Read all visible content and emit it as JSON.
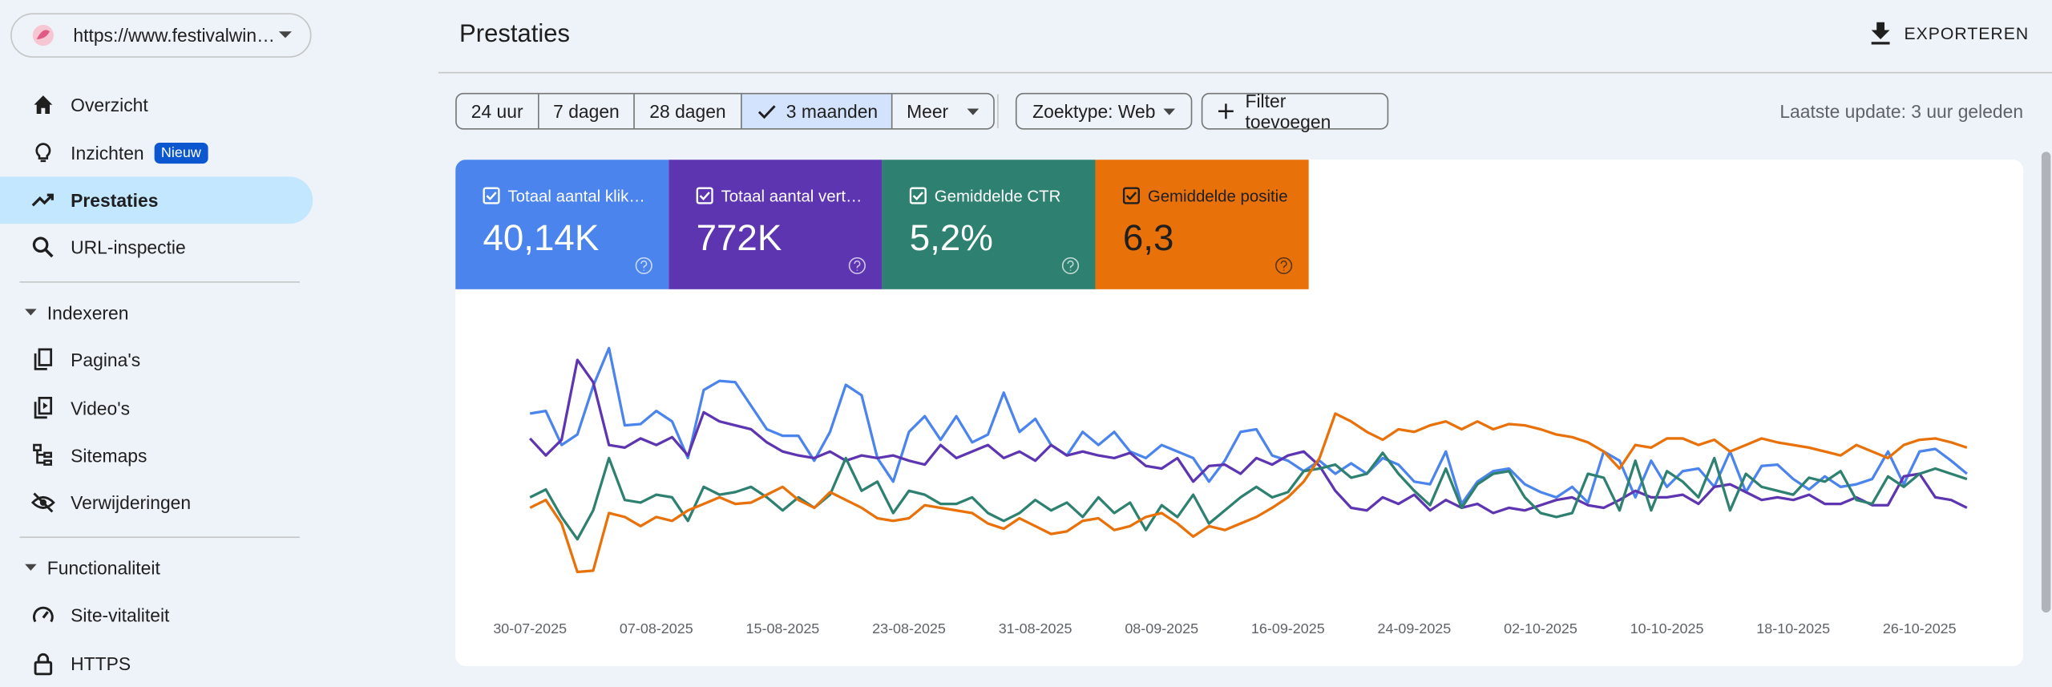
{
  "sidebar": {
    "property": "https://www.festivalwin…",
    "nav": [
      "Overzicht",
      "Inzichten",
      "Prestaties",
      "URL-inspectie"
    ],
    "badge": "Nieuw",
    "sections": [
      {
        "title": "Indexeren",
        "items": [
          "Pagina's",
          "Video's",
          "Sitemaps",
          "Verwijderingen"
        ]
      },
      {
        "title": "Functionaliteit",
        "items": [
          "Site-vitaliteit",
          "HTTPS"
        ]
      }
    ]
  },
  "header": {
    "title": "Prestaties",
    "export": "EXPORTEREN"
  },
  "toolbar": {
    "ranges": [
      "24 uur",
      "7 dagen",
      "28 dagen",
      "3 maanden",
      "Meer"
    ],
    "selected_range": 3,
    "search_type": "Zoektype: Web",
    "add_filter": "Filter toevoegen",
    "last_update": "Laatste update: 3 uur geleden"
  },
  "chart_data": {
    "type": "line",
    "categories": [
      "30-07-2025",
      null,
      null,
      null,
      null,
      null,
      null,
      null,
      "07-08-2025",
      null,
      null,
      null,
      null,
      null,
      null,
      null,
      "15-08-2025",
      null,
      null,
      null,
      null,
      null,
      null,
      null,
      "23-08-2025",
      null,
      null,
      null,
      null,
      null,
      null,
      null,
      "31-08-2025",
      null,
      null,
      null,
      null,
      null,
      null,
      null,
      "08-09-2025",
      null,
      null,
      null,
      null,
      null,
      null,
      null,
      "16-09-2025",
      null,
      null,
      null,
      null,
      null,
      null,
      null,
      "24-09-2025",
      null,
      null,
      null,
      null,
      null,
      null,
      null,
      "02-10-2025",
      null,
      null,
      null,
      null,
      null,
      null,
      null,
      "10-10-2025",
      null,
      null,
      null,
      null,
      null,
      null,
      null,
      "18-10-2025",
      null,
      null,
      null,
      null,
      null,
      null,
      null,
      "26-10-2025",
      null,
      null,
      null
    ],
    "ylim": [
      0,
      200
    ],
    "series": [
      {
        "name": "Totaal aantal klik…",
        "total_label": "40,14K",
        "color": "#4a84ec",
        "text_color": "#ffffff",
        "values": [
          134,
          136,
          110,
          118,
          155,
          184,
          125,
          126,
          136,
          128,
          100,
          152,
          159,
          158,
          140,
          122,
          117,
          117,
          98,
          120,
          156,
          148,
          100,
          82,
          120,
          132,
          114,
          132,
          112,
          118,
          150,
          120,
          130,
          110,
          102,
          120,
          110,
          120,
          105,
          100,
          110,
          105,
          100,
          82,
          98,
          120,
          122,
          102,
          98,
          90,
          98,
          88,
          96,
          88,
          100,
          95,
          82,
          80,
          105,
          65,
          82,
          90,
          92,
          80,
          74,
          70,
          78,
          66,
          105,
          98,
          70,
          98,
          78,
          90,
          92,
          78,
          105,
          74,
          94,
          95,
          84,
          76,
          86,
          78,
          80,
          84,
          105,
          80,
          105,
          107,
          98,
          88
        ]
      },
      {
        "name": "Totaal aantal vert…",
        "total_label": "772K",
        "color": "#5e35b1",
        "text_color": "#ffffff",
        "values": [
          115,
          102,
          114,
          175,
          158,
          110,
          108,
          115,
          110,
          116,
          102,
          135,
          128,
          125,
          122,
          112,
          105,
          102,
          100,
          105,
          98,
          102,
          100,
          102,
          98,
          95,
          110,
          100,
          105,
          110,
          100,
          105,
          98,
          110,
          102,
          105,
          102,
          100,
          104,
          94,
          92,
          100,
          82,
          94,
          95,
          88,
          100,
          95,
          102,
          105,
          94,
          75,
          62,
          60,
          70,
          65,
          72,
          60,
          68,
          62,
          65,
          58,
          62,
          60,
          64,
          68,
          70,
          64,
          62,
          68,
          75,
          70,
          70,
          72,
          65,
          78,
          80,
          74,
          68,
          70,
          68,
          72,
          65,
          65,
          70,
          64,
          64,
          86,
          88,
          70,
          68,
          62
        ]
      },
      {
        "name": "Gemiddelde CTR",
        "total_label": "5,2%",
        "color": "#2e8170",
        "text_color": "#ffffff",
        "values": [
          70,
          76,
          55,
          38,
          60,
          100,
          68,
          66,
          72,
          70,
          52,
          78,
          72,
          74,
          78,
          70,
          60,
          70,
          62,
          72,
          100,
          75,
          82,
          58,
          75,
          72,
          65,
          65,
          70,
          58,
          52,
          58,
          68,
          60,
          66,
          55,
          70,
          58,
          66,
          45,
          64,
          55,
          72,
          50,
          60,
          70,
          78,
          70,
          74,
          90,
          92,
          95,
          85,
          88,
          104,
          88,
          75,
          64,
          92,
          62,
          80,
          88,
          90,
          70,
          58,
          55,
          58,
          88,
          85,
          60,
          98,
          60,
          90,
          82,
          70,
          100,
          60,
          88,
          78,
          75,
          72,
          85,
          82,
          90,
          68,
          65,
          86,
          78,
          88,
          92,
          88,
          84
        ]
      },
      {
        "name": "Gemiddelde positie",
        "total_label": "6,3",
        "color": "#e8710a",
        "text_color": "#1f1f1f",
        "values": [
          62,
          68,
          50,
          13,
          14,
          58,
          55,
          48,
          55,
          52,
          60,
          65,
          70,
          65,
          66,
          72,
          78,
          68,
          62,
          74,
          68,
          62,
          54,
          52,
          54,
          64,
          62,
          60,
          58,
          50,
          46,
          54,
          48,
          42,
          44,
          52,
          54,
          45,
          48,
          55,
          58,
          50,
          40,
          48,
          45,
          50,
          55,
          62,
          70,
          82,
          100,
          134,
          128,
          120,
          114,
          122,
          120,
          125,
          128,
          122,
          128,
          122,
          126,
          125,
          122,
          118,
          116,
          112,
          105,
          92,
          110,
          108,
          115,
          115,
          110,
          114,
          105,
          110,
          115,
          112,
          110,
          108,
          105,
          102,
          110,
          105,
          100,
          110,
          114,
          115,
          112,
          108
        ]
      }
    ]
  }
}
